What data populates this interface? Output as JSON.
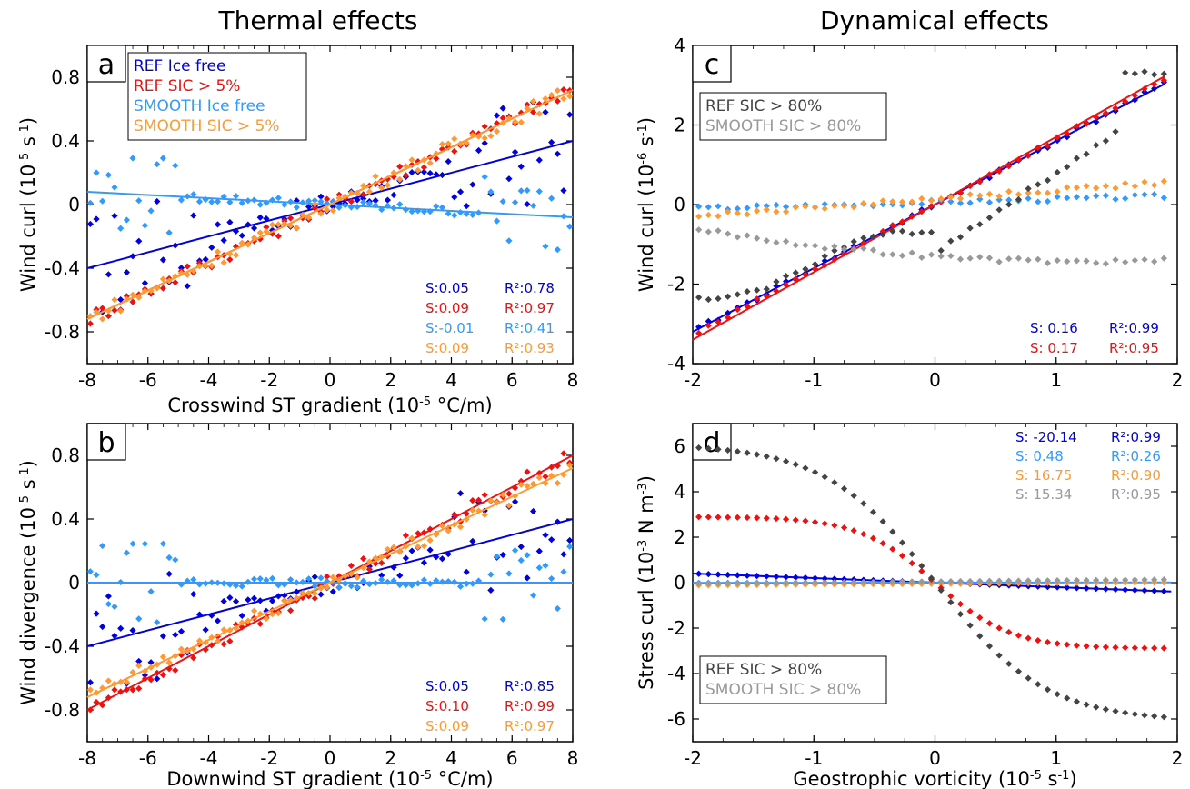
{
  "figure": {
    "col_titles": [
      "Thermal effects",
      "Dynamical effects"
    ],
    "colors": {
      "ref_ice_free": "#0000e0",
      "ref_sic": "#ee1111",
      "smooth_ice_free": "#3399ff",
      "smooth_sic": "#ff9933",
      "ref_sic80": "#444444",
      "smooth_sic80": "#999999"
    }
  },
  "chart_data": [
    {
      "type": "scatter",
      "panel_label": "a",
      "xlabel": "Crosswind ST gradient (10-5 °C/m)",
      "ylabel": "Wind curl (10-5 s-1)",
      "xlim": [
        -8,
        8
      ],
      "ylim": [
        -1.0,
        1.0
      ],
      "xticks": [
        -8,
        -6,
        -4,
        -2,
        0,
        2,
        4,
        6,
        8
      ],
      "yticks": [
        -0.8,
        -0.4,
        0,
        0.4,
        0.8
      ],
      "legend": {
        "position": "top-left",
        "entries": [
          "REF Ice free",
          "REF SIC > 5%",
          "SMOOTH Ice free",
          "SMOOTH SIC > 5%"
        ]
      },
      "series": [
        {
          "name": "REF Ice free",
          "color_key": "ref_ice_free",
          "slope": 0.05,
          "r2": 0.78,
          "stats": [
            "S:0.05",
            "R²:0.78"
          ]
        },
        {
          "name": "REF SIC > 5%",
          "color_key": "ref_sic",
          "slope": 0.09,
          "r2": 0.97,
          "stats": [
            "S:0.09",
            "R²:0.97"
          ]
        },
        {
          "name": "SMOOTH Ice free",
          "color_key": "smooth_ice_free",
          "slope": -0.01,
          "r2": 0.41,
          "stats": [
            "S:-0.01",
            "R²:0.41"
          ]
        },
        {
          "name": "SMOOTH SIC > 5%",
          "color_key": "smooth_sic",
          "slope": 0.09,
          "r2": 0.93,
          "stats": [
            "S:0.09",
            "R²:0.93"
          ]
        }
      ]
    },
    {
      "type": "scatter",
      "panel_label": "b",
      "xlabel": "Downwind ST gradient (10-5 °C/m)",
      "ylabel": "Wind divergence (10-5 s-1)",
      "xlim": [
        -8,
        8
      ],
      "ylim": [
        -1.0,
        1.0
      ],
      "xticks": [
        -8,
        -6,
        -4,
        -2,
        0,
        2,
        4,
        6,
        8
      ],
      "yticks": [
        -0.8,
        -0.4,
        0,
        0.4,
        0.8
      ],
      "series": [
        {
          "name": "REF Ice free",
          "color_key": "ref_ice_free",
          "slope": 0.05,
          "r2": 0.85,
          "stats": [
            "S:0.05",
            "R²:0.85"
          ]
        },
        {
          "name": "REF SIC > 5%",
          "color_key": "ref_sic",
          "slope": 0.1,
          "r2": 0.99,
          "stats": [
            "S:0.10",
            "R²:0.99"
          ]
        },
        {
          "name": "SMOOTH Ice free",
          "color_key": "smooth_ice_free",
          "slope": 0.0
        },
        {
          "name": "SMOOTH SIC > 5%",
          "color_key": "smooth_sic",
          "slope": 0.09,
          "r2": 0.97,
          "stats": [
            "S:0.09",
            "R²:0.97"
          ]
        }
      ]
    },
    {
      "type": "scatter",
      "panel_label": "c",
      "xlabel": "",
      "ylabel": "Wind curl (10-6 s-1)",
      "xlim": [
        -2,
        2
      ],
      "ylim": [
        -4,
        4
      ],
      "xticks": [
        -2,
        -1,
        0,
        1,
        2
      ],
      "yticks": [
        -4,
        -2,
        0,
        2,
        4
      ],
      "legend": {
        "position": "top-left",
        "entries": [
          "REF SIC > 80%",
          "SMOOTH SIC > 80%"
        ]
      },
      "series": [
        {
          "name": "REF Ice free",
          "color_key": "ref_ice_free",
          "slope": 0.16,
          "r2": 0.99,
          "stats": [
            "S: 0.16",
            "R²:0.99"
          ]
        },
        {
          "name": "REF SIC > 5%",
          "color_key": "ref_sic",
          "slope": 0.17,
          "r2": 0.95,
          "stats": [
            "S: 0.17",
            "R²:0.95"
          ]
        },
        {
          "name": "SMOOTH Ice free",
          "color_key": "smooth_ice_free"
        },
        {
          "name": "SMOOTH SIC > 5%",
          "color_key": "smooth_sic"
        },
        {
          "name": "REF SIC > 80%",
          "color_key": "ref_sic80"
        },
        {
          "name": "SMOOTH SIC > 80%",
          "color_key": "smooth_sic80"
        }
      ]
    },
    {
      "type": "scatter",
      "panel_label": "d",
      "xlabel": "Geostrophic vorticity (10-5 s-1)",
      "ylabel": "Stress curl (10-3 N m-3)",
      "xlim": [
        -2,
        2
      ],
      "ylim": [
        -7,
        7
      ],
      "xticks": [
        -2,
        -1,
        0,
        1,
        2
      ],
      "yticks": [
        -6,
        -4,
        -2,
        0,
        2,
        4,
        6
      ],
      "legend": {
        "position": "bottom-left",
        "entries": [
          "REF SIC > 80%",
          "SMOOTH SIC > 80%"
        ]
      },
      "series": [
        {
          "name": "REF Ice free",
          "color_key": "ref_ice_free",
          "slope": -20.14,
          "r2": 0.99,
          "stats": [
            "S: -20.14",
            "R²:0.99"
          ]
        },
        {
          "name": "SMOOTH Ice free",
          "color_key": "smooth_ice_free",
          "slope": 0.48,
          "r2": 0.26,
          "stats": [
            "S: 0.48",
            "R²:0.26"
          ]
        },
        {
          "name": "SMOOTH SIC > 5%",
          "color_key": "smooth_sic",
          "slope": 16.75,
          "r2": 0.9,
          "stats": [
            "S: 16.75",
            "R²:0.90"
          ]
        },
        {
          "name": "SMOOTH SIC > 80%",
          "color_key": "smooth_sic80",
          "slope": 15.34,
          "r2": 0.95,
          "stats": [
            "S: 15.34",
            "R²:0.95"
          ]
        },
        {
          "name": "REF SIC > 5%",
          "color_key": "ref_sic"
        },
        {
          "name": "REF SIC > 80%",
          "color_key": "ref_sic80"
        }
      ]
    }
  ]
}
